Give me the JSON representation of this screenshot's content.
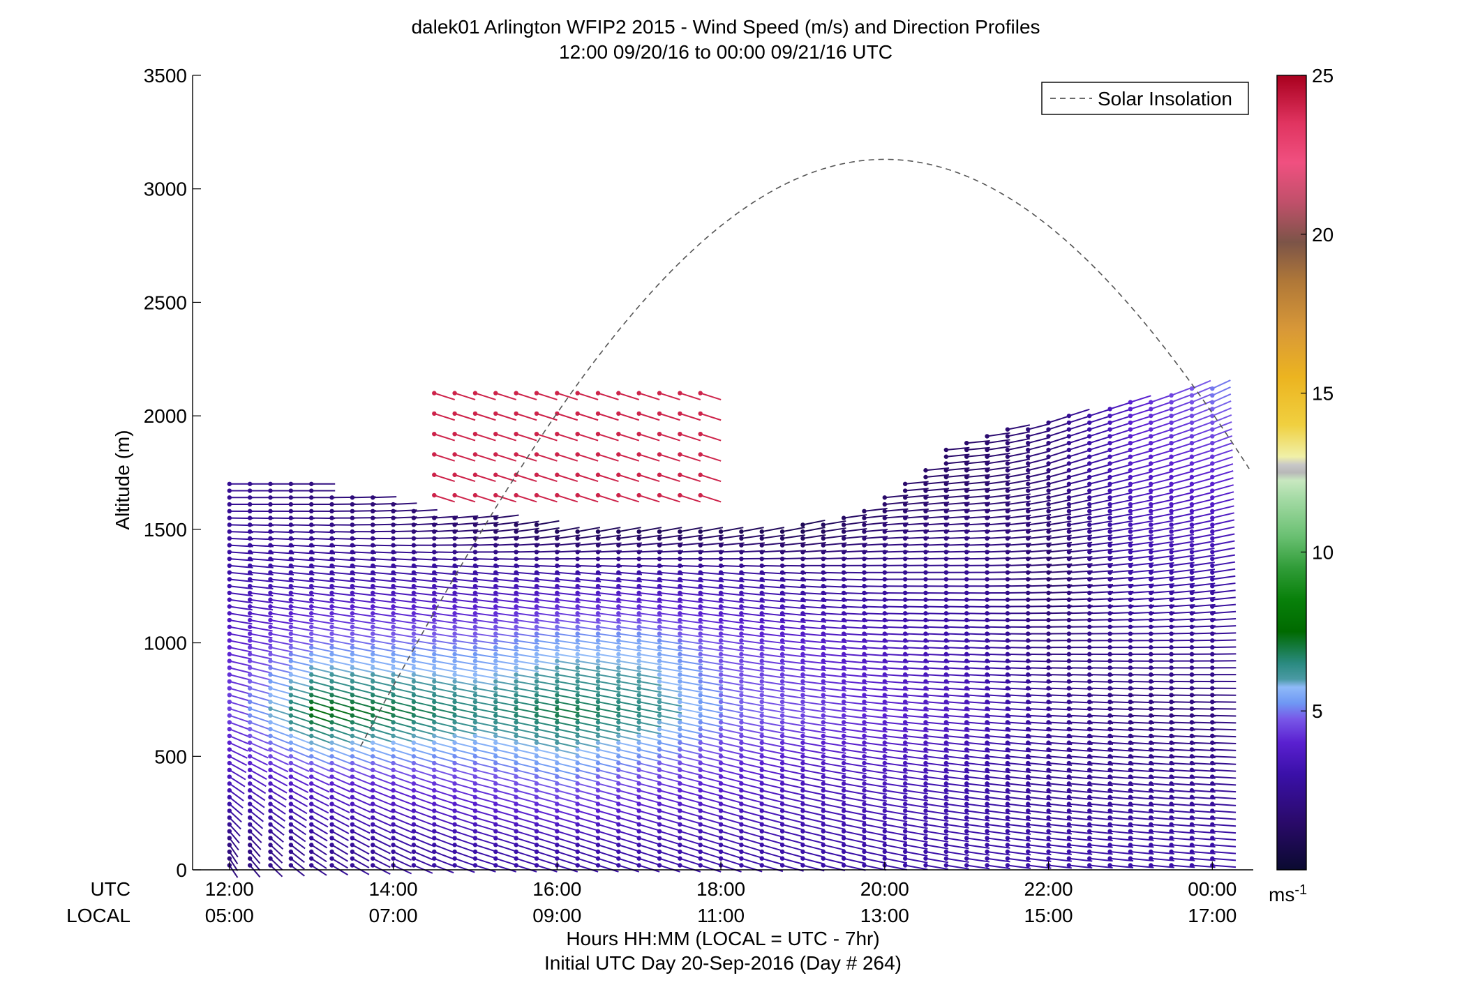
{
  "chart_data": {
    "type": "wind-barb-profile",
    "title": "dalek01 Arlington WFIP2 2015 - Wind Speed (m/s) and Direction Profiles",
    "subtitle": "12:00 09/20/16 to 00:00 09/21/16  UTC",
    "ylabel": "Altitude (m)",
    "ylim": [
      0,
      3500
    ],
    "y_ticks": [
      "0",
      "500",
      "1000",
      "1500",
      "2000",
      "2500",
      "3000",
      "3500"
    ],
    "xlim_hours_utc": [
      11.55,
      24.5
    ],
    "x_ticks_hours": [
      12,
      14,
      16,
      18,
      20,
      22,
      24
    ],
    "x_ticks_utc": [
      "12:00",
      "14:00",
      "16:00",
      "18:00",
      "20:00",
      "22:00",
      "00:00"
    ],
    "x_ticks_local": [
      "05:00",
      "07:00",
      "09:00",
      "11:00",
      "13:00",
      "15:00",
      "17:00"
    ],
    "row_label_utc": "UTC",
    "row_label_local": "LOCAL",
    "xlabel": "Hours HH:MM  (LOCAL = UTC - 7hr)",
    "xlabel2": "Initial UTC Day 20-Sep-2016 (Day # 264)",
    "legend": {
      "label": "Solar Insolation",
      "position": "top-right",
      "line_color": "#555555"
    },
    "colorbar": {
      "range": [
        0,
        25
      ],
      "ticks": [
        "5",
        "10",
        "15",
        "20",
        "25"
      ],
      "unit_base": "ms",
      "unit_exp": "-1",
      "stops": [
        [
          0.0,
          "#0a0a30"
        ],
        [
          0.06,
          "#2a0a6a"
        ],
        [
          0.12,
          "#3a10a8"
        ],
        [
          0.16,
          "#5a20d0"
        ],
        [
          0.19,
          "#7858e8"
        ],
        [
          0.21,
          "#6f98f4"
        ],
        [
          0.23,
          "#8fbaf8"
        ],
        [
          0.24,
          "#4a9aa4"
        ],
        [
          0.26,
          "#2a8a80"
        ],
        [
          0.3,
          "#006a00"
        ],
        [
          0.34,
          "#08800a"
        ],
        [
          0.38,
          "#309c38"
        ],
        [
          0.42,
          "#6ac072"
        ],
        [
          0.47,
          "#a8dca8"
        ],
        [
          0.49,
          "#c8e8c0"
        ],
        [
          0.5,
          "#b8b8b8"
        ],
        [
          0.51,
          "#c8c8c8"
        ],
        [
          0.52,
          "#f0f0a8"
        ],
        [
          0.56,
          "#f0d040"
        ],
        [
          0.62,
          "#ecb420"
        ],
        [
          0.68,
          "#d89838"
        ],
        [
          0.74,
          "#b07838"
        ],
        [
          0.79,
          "#7c5448"
        ],
        [
          0.84,
          "#c0506a"
        ],
        [
          0.89,
          "#f05080"
        ],
        [
          0.94,
          "#e03460"
        ],
        [
          1.0,
          "#a8001e"
        ]
      ]
    },
    "time_hours_utc": [
      12.0,
      12.25,
      12.5,
      12.75,
      13.0,
      13.25,
      13.5,
      13.75,
      14.0,
      14.25,
      14.5,
      14.75,
      15.0,
      15.25,
      15.5,
      15.75,
      16.0,
      16.25,
      16.5,
      16.75,
      17.0,
      17.25,
      17.5,
      17.75,
      18.0,
      18.25,
      18.5,
      18.75,
      19.0,
      19.25,
      19.5,
      19.75,
      20.0,
      20.25,
      20.5,
      20.75,
      21.0,
      21.25,
      21.5,
      21.75,
      22.0,
      22.25,
      22.5,
      22.75,
      23.0,
      23.25,
      23.5,
      23.75,
      24.0
    ],
    "profile_top_m": [
      1700,
      1700,
      1700,
      1700,
      1700,
      1640,
      1640,
      1640,
      1620,
      1580,
      1560,
      1560,
      1560,
      1560,
      1540,
      1520,
      1500,
      1500,
      1500,
      1500,
      1500,
      1490,
      1490,
      1490,
      1490,
      1490,
      1500,
      1500,
      1520,
      1540,
      1560,
      1580,
      1640,
      1700,
      1780,
      1860,
      1900,
      1920,
      1940,
      1960,
      1980,
      2000,
      2020,
      2040,
      2060,
      2080,
      2100,
      2120,
      2140
    ],
    "wind_profiles": [
      {
        "time_hours_utc": 12.0,
        "levels_m": [
          100,
          400,
          700,
          1000,
          1300,
          1600
        ],
        "speed_ms": [
          2.0,
          3.5,
          4.5,
          4.0,
          3.0,
          2.5
        ],
        "direction_deg": [
          200,
          220,
          240,
          250,
          260,
          270
        ]
      },
      {
        "time_hours_utc": 13.0,
        "levels_m": [
          100,
          400,
          700,
          1000,
          1300,
          1600
        ],
        "speed_ms": [
          2.5,
          4.0,
          7.5,
          5.0,
          3.0,
          2.0
        ],
        "direction_deg": [
          220,
          230,
          240,
          250,
          260,
          270
        ]
      },
      {
        "time_hours_utc": 15.0,
        "levels_m": [
          100,
          400,
          700,
          1000,
          1300,
          1500
        ],
        "speed_ms": [
          3.0,
          4.5,
          6.5,
          5.0,
          3.0,
          1.5
        ],
        "direction_deg": [
          240,
          245,
          250,
          255,
          260,
          280
        ]
      },
      {
        "time_hours_utc": 16.0,
        "levels_m": [
          100,
          400,
          700,
          1000,
          1300,
          1500
        ],
        "speed_ms": [
          3.0,
          5.0,
          7.0,
          5.5,
          3.0,
          1.0
        ],
        "direction_deg": [
          240,
          245,
          250,
          255,
          260,
          290
        ]
      },
      {
        "time_hours_utc": 17.0,
        "levels_m": [
          100,
          400,
          700,
          1000,
          1300,
          1500
        ],
        "speed_ms": [
          3.0,
          4.5,
          6.5,
          5.5,
          3.0,
          1.0
        ],
        "direction_deg": [
          240,
          245,
          250,
          255,
          260,
          290
        ]
      },
      {
        "time_hours_utc": 18.0,
        "levels_m": [
          100,
          400,
          700,
          1000,
          1300,
          1500
        ],
        "speed_ms": [
          3.0,
          4.0,
          5.0,
          4.5,
          3.0,
          1.0
        ],
        "direction_deg": [
          240,
          245,
          250,
          255,
          260,
          290
        ]
      },
      {
        "time_hours_utc": 19.0,
        "levels_m": [
          100,
          400,
          700,
          1000,
          1300,
          1500
        ],
        "speed_ms": [
          3.0,
          3.5,
          4.5,
          4.0,
          2.5,
          1.0
        ],
        "direction_deg": [
          245,
          250,
          255,
          260,
          265,
          290
        ]
      },
      {
        "time_hours_utc": 20.0,
        "levels_m": [
          100,
          400,
          700,
          1000,
          1300,
          1600
        ],
        "speed_ms": [
          3.0,
          3.5,
          4.0,
          3.5,
          2.5,
          1.5
        ],
        "direction_deg": [
          250,
          255,
          260,
          265,
          270,
          280
        ]
      },
      {
        "time_hours_utc": 21.0,
        "levels_m": [
          100,
          400,
          700,
          1000,
          1300,
          1700
        ],
        "speed_ms": [
          3.0,
          3.0,
          3.5,
          3.0,
          2.5,
          1.5
        ],
        "direction_deg": [
          255,
          258,
          262,
          266,
          270,
          280
        ]
      },
      {
        "time_hours_utc": 22.0,
        "levels_m": [
          100,
          400,
          700,
          1000,
          1300,
          1800
        ],
        "speed_ms": [
          3.0,
          2.5,
          2.5,
          2.0,
          1.5,
          2.0
        ],
        "direction_deg": [
          258,
          260,
          265,
          270,
          275,
          300
        ]
      },
      {
        "time_hours_utc": 23.0,
        "levels_m": [
          100,
          400,
          700,
          1000,
          1300,
          1900
        ],
        "speed_ms": [
          3.0,
          2.5,
          2.0,
          2.5,
          3.0,
          4.0
        ],
        "direction_deg": [
          260,
          262,
          266,
          270,
          280,
          300
        ]
      },
      {
        "time_hours_utc": 24.0,
        "levels_m": [
          100,
          400,
          700,
          1000,
          1300,
          2100
        ],
        "speed_ms": [
          3.0,
          2.5,
          2.0,
          2.5,
          3.0,
          5.0
        ],
        "direction_deg": [
          262,
          264,
          268,
          272,
          285,
          310
        ]
      }
    ],
    "upper_winds": {
      "time_range_hours_utc": [
        14.5,
        17.9
      ],
      "altitude_range_m": [
        1650,
        2150
      ],
      "speed_ms": 24,
      "direction_deg": 240
    },
    "solar_insolation_peak_altitude_m": 3130,
    "solar_insolation_peak_hour_utc": 20.0
  }
}
